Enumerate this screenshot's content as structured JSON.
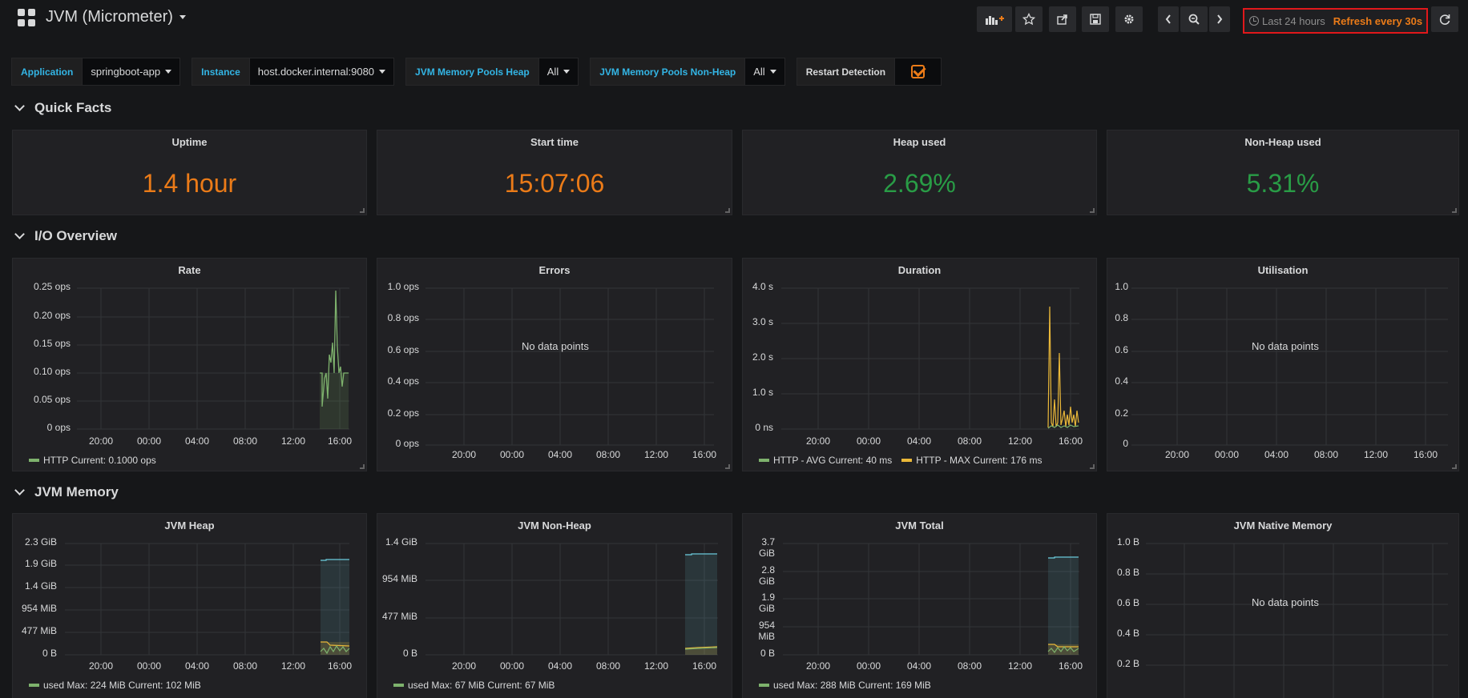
{
  "navbar": {
    "title": "JVM (Micrometer)",
    "time_range": "Last 24 hours",
    "refresh": "Refresh every 30s"
  },
  "vars": {
    "application_label": "Application",
    "application_value": "springboot-app",
    "instance_label": "Instance",
    "instance_value": "host.docker.internal:9080",
    "heap_label": "JVM Memory Pools Heap",
    "heap_value": "All",
    "nonheap_label": "JVM Memory Pools Non-Heap",
    "nonheap_value": "All",
    "restart_label": "Restart Detection"
  },
  "rows": {
    "quick_facts": "Quick Facts",
    "io_overview": "I/O Overview",
    "jvm_memory": "JVM Memory"
  },
  "quick_facts": {
    "uptime_title": "Uptime",
    "uptime_value": "1.4 hour",
    "start_title": "Start time",
    "start_value": "15:07:06",
    "heap_title": "Heap used",
    "heap_value": "2.69%",
    "nonheap_title": "Non-Heap used",
    "nonheap_value": "5.31%"
  },
  "xticks": [
    "20:00",
    "00:00",
    "04:00",
    "08:00",
    "12:00",
    "16:00"
  ],
  "io": {
    "rate": {
      "title": "Rate",
      "yticks": [
        "0.25 ops",
        "0.20 ops",
        "0.15 ops",
        "0.10 ops",
        "0.05 ops",
        "0 ops"
      ],
      "legend_name": "HTTP",
      "legend_current": "Current: 0.1000 ops"
    },
    "errors": {
      "title": "Errors",
      "yticks": [
        "1.0 ops",
        "0.8 ops",
        "0.6 ops",
        "0.4 ops",
        "0.2 ops",
        "0 ops"
      ],
      "nodata": "No data points"
    },
    "duration": {
      "title": "Duration",
      "yticks": [
        "4.0 s",
        "3.0 s",
        "2.0 s",
        "1.0 s",
        "0 ns"
      ],
      "legend_avg_name": "HTTP - AVG",
      "legend_avg_current": "Current: 40 ms",
      "legend_max_name": "HTTP - MAX",
      "legend_max_current": "Current: 176 ms"
    },
    "utilisation": {
      "title": "Utilisation",
      "yticks": [
        "1.0",
        "0.8",
        "0.6",
        "0.4",
        "0.2",
        "0"
      ],
      "nodata": "No data points"
    }
  },
  "memory": {
    "heap": {
      "title": "JVM Heap",
      "yticks": [
        "2.3 GiB",
        "1.9 GiB",
        "1.4 GiB",
        "954 MiB",
        "477 MiB",
        "0 B"
      ],
      "legend_name": "used",
      "legend_max": "Max: 224 MiB",
      "legend_current": "Current: 102 MiB"
    },
    "nonheap": {
      "title": "JVM Non-Heap",
      "yticks": [
        "1.4 GiB",
        "954 MiB",
        "477 MiB",
        "0 B"
      ],
      "legend_name": "used",
      "legend_max": "Max: 67 MiB",
      "legend_current": "Current: 67 MiB"
    },
    "total": {
      "title": "JVM Total",
      "yticks": [
        "3.7 GiB",
        "2.8 GiB",
        "1.9 GiB",
        "954 MiB",
        "0 B"
      ],
      "legend_name": "used",
      "legend_max": "Max: 288 MiB",
      "legend_current": "Current: 169 MiB"
    },
    "native": {
      "title": "JVM Native Memory",
      "yticks": [
        "1.0 B",
        "0.8 B",
        "0.6 B",
        "0.4 B",
        "0.2 B"
      ],
      "nodata": "No data points"
    }
  },
  "colors": {
    "green_series": "#7eb26d",
    "orange_series": "#eab839",
    "blue_series": "#6ed0e0",
    "stat_orange": "#eb7b18",
    "stat_green": "#299c46"
  }
}
